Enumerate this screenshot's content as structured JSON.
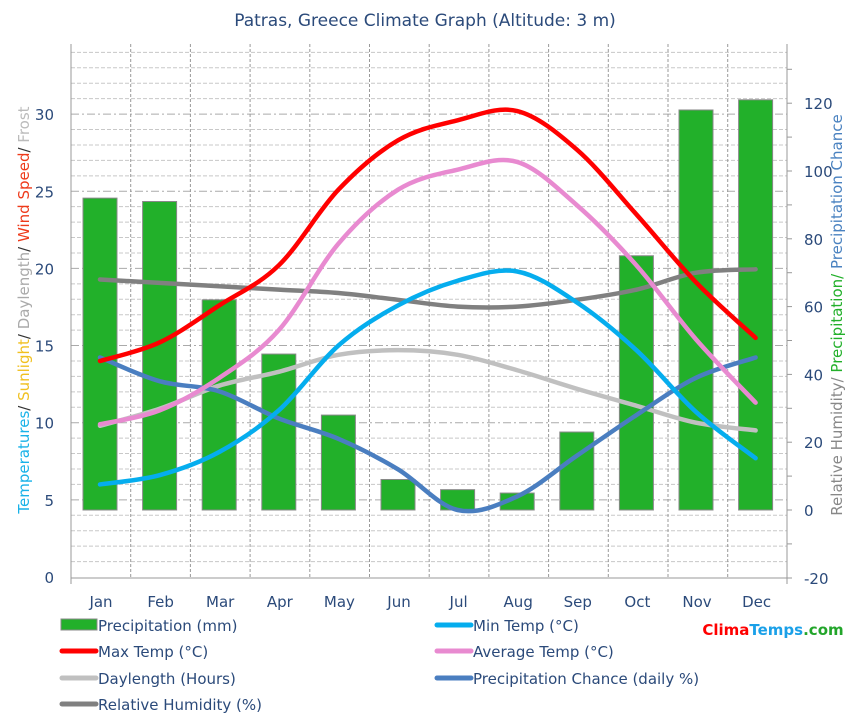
{
  "chart_data": {
    "type": "bar+line",
    "title": "Patras, Greece Climate Graph (Altitude: 3 m)",
    "categories": [
      "Jan",
      "Feb",
      "Mar",
      "Apr",
      "May",
      "Jun",
      "Jul",
      "Aug",
      "Sep",
      "Oct",
      "Nov",
      "Dec"
    ],
    "left_axis": {
      "label_parts": [
        {
          "text": "Temperatures",
          "color": "#19b2e8"
        },
        {
          "text": "/ ",
          "color": "#333333"
        },
        {
          "text": "Sunlight",
          "color": "#f0c020"
        },
        {
          "text": "/ ",
          "color": "#333333"
        },
        {
          "text": "Daylength",
          "color": "#aaaaaa"
        },
        {
          "text": "/ ",
          "color": "#333333"
        },
        {
          "text": "Wind Speed",
          "color": "#ee3a1a"
        },
        {
          "text": "/ ",
          "color": "#333333"
        },
        {
          "text": "Frost",
          "color": "#bbbbbb"
        }
      ],
      "ylim": [
        0,
        34.5
      ],
      "ticks": [
        0,
        5,
        10,
        15,
        20,
        25,
        30
      ]
    },
    "right_axis": {
      "label_parts": [
        {
          "text": "Relative Humidity/ ",
          "color": "#888888"
        },
        {
          "text": "Precipitation/ ",
          "color": "#22b02a"
        },
        {
          "text": "Precipitation Chance",
          "color": "#4a82c0"
        }
      ],
      "ylim": [
        -20,
        137
      ],
      "ticks": [
        -20,
        0,
        20,
        40,
        60,
        80,
        100,
        120
      ]
    },
    "grid": true,
    "legend_placement": "bottom",
    "series": [
      {
        "name": "Precipitation (mm)",
        "type": "bar",
        "axis": "right",
        "color": "#22b02a",
        "values": [
          92,
          91,
          62,
          46,
          28,
          9,
          6,
          5,
          23,
          75,
          118,
          121
        ]
      },
      {
        "name": "Min Temp (°C)",
        "type": "line",
        "axis": "left",
        "color": "#05adee",
        "values": [
          6.0,
          6.6,
          8.1,
          10.8,
          15.0,
          17.6,
          19.2,
          19.8,
          17.8,
          14.7,
          10.7,
          7.7
        ]
      },
      {
        "name": "Max Temp (°C)",
        "type": "line",
        "axis": "left",
        "color": "#ff0000",
        "values": [
          14.0,
          15.2,
          17.6,
          20.2,
          25.1,
          28.3,
          29.6,
          30.2,
          27.7,
          23.5,
          19.1,
          15.5
        ]
      },
      {
        "name": "Average Temp (°C)",
        "type": "line",
        "axis": "left",
        "color": "#e88ad0",
        "values": [
          9.9,
          10.8,
          12.9,
          16.0,
          21.6,
          25.1,
          26.4,
          26.9,
          24.1,
          20.2,
          15.4,
          11.3
        ]
      },
      {
        "name": "Daylength (Hours)",
        "type": "line",
        "axis": "left",
        "color": "#c0c0c0",
        "values": [
          9.8,
          10.9,
          12.4,
          13.3,
          14.4,
          14.7,
          14.4,
          13.4,
          12.2,
          11.1,
          10.0,
          9.5
        ]
      },
      {
        "name": "Precipitation Chance (daily %)",
        "type": "line",
        "axis": "right",
        "color": "#4a7ec0",
        "values": [
          45,
          38,
          35,
          27,
          21,
          12,
          0,
          4,
          16,
          28,
          39,
          45
        ]
      },
      {
        "name": "Relative Humidity (%)",
        "type": "line",
        "axis": "right",
        "color": "#808080",
        "values": [
          68,
          67,
          66,
          65,
          64,
          62,
          60,
          60,
          62,
          65,
          70,
          71
        ]
      }
    ]
  },
  "brand": {
    "parts": [
      {
        "text": "Clima",
        "color": "#ff0000"
      },
      {
        "text": "Temps",
        "color": "#1aa0e8"
      },
      {
        "text": ".com",
        "color": "#22a52a"
      }
    ]
  }
}
